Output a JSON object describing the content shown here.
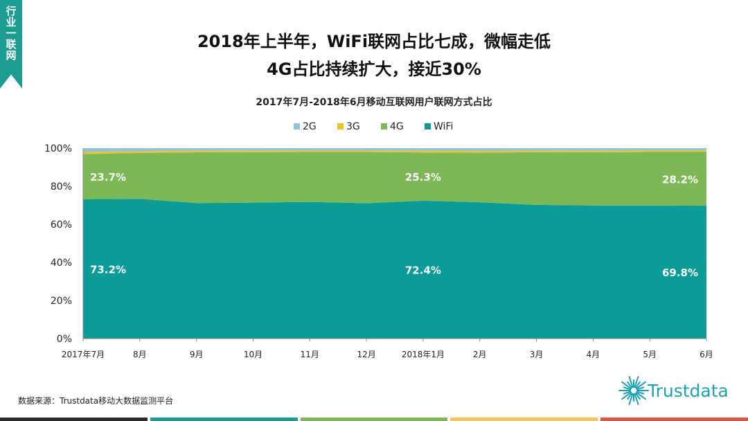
{
  "side_tag": "行业一联网",
  "title_line1": "2018年上半年，WiFi联网占比七成，微幅走低",
  "title_line2": "4G占比持续扩大，接近30%",
  "source_text": "数据来源：Trustdata移动大数据监测平台",
  "logo_text": "Trustdata",
  "colors": {
    "2G": "#8dc3dc",
    "3G": "#f1c21b",
    "4G": "#7cb855",
    "WiFi": "#0b9c97",
    "tag": "#1a9c91",
    "bar": [
      "#2a2a2a",
      "#1a9c91",
      "#7cb855",
      "#f4c65a",
      "#e0533f"
    ]
  },
  "chart_data": {
    "type": "area",
    "stacked": true,
    "title": "2017年7月-2018年6月移动互联网用户联网方式占比",
    "categories": [
      "2017年7月",
      "8月",
      "9月",
      "10月",
      "11月",
      "12月",
      "2018年1月",
      "2月",
      "3月",
      "4月",
      "5月",
      "6月"
    ],
    "ylim": [
      0,
      100
    ],
    "yticks": [
      "0%",
      "20%",
      "40%",
      "60%",
      "80%",
      "100%"
    ],
    "legend": [
      "2G",
      "3G",
      "4G",
      "WiFi"
    ],
    "legend_position": "top",
    "series": [
      {
        "name": "WiFi",
        "values": [
          73.2,
          73.4,
          71.2,
          71.4,
          71.8,
          71.1,
          72.4,
          71.6,
          70.2,
          69.9,
          69.9,
          69.8
        ]
      },
      {
        "name": "4G",
        "values": [
          23.7,
          24.1,
          26.6,
          26.5,
          26.2,
          26.9,
          25.3,
          26.0,
          27.7,
          27.9,
          28.1,
          28.2
        ]
      },
      {
        "name": "3G",
        "values": [
          1.1,
          0.9,
          0.8,
          0.7,
          0.7,
          0.7,
          0.9,
          0.9,
          0.8,
          0.8,
          0.8,
          0.8
        ]
      },
      {
        "name": "2G",
        "values": [
          2.0,
          1.6,
          1.4,
          1.4,
          1.3,
          1.3,
          1.4,
          1.5,
          1.3,
          1.4,
          1.2,
          1.2
        ]
      }
    ],
    "data_labels": [
      {
        "series": "4G",
        "category": "2017年7月",
        "text": "23.7%"
      },
      {
        "series": "4G",
        "category": "2018年1月",
        "text": "25.3%"
      },
      {
        "series": "4G",
        "category": "6月",
        "text": "28.2%"
      },
      {
        "series": "WiFi",
        "category": "2017年7月",
        "text": "73.2%"
      },
      {
        "series": "WiFi",
        "category": "2018年1月",
        "text": "72.4%"
      },
      {
        "series": "WiFi",
        "category": "6月",
        "text": "69.8%"
      }
    ]
  }
}
